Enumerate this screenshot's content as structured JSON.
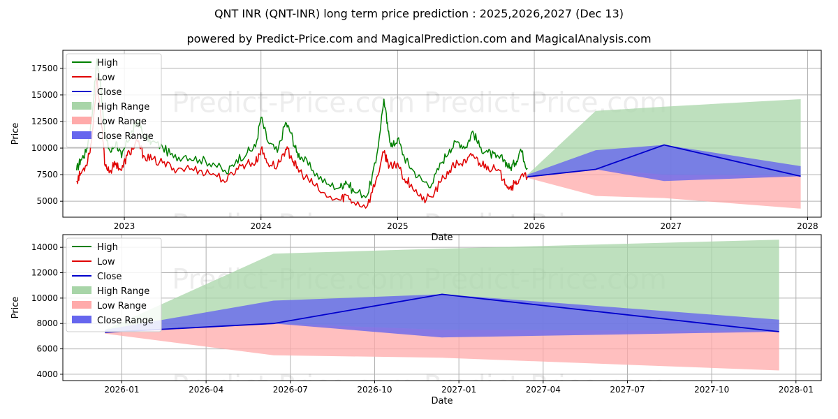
{
  "title": "QNT INR (QNT-INR) long term price prediction : 2025,2026,2027 (Dec 13)",
  "subtitle": "powered by Predict-Price.com and MagicalPrediction.com and MagicalAnalysis.com",
  "watermark": "Predict-Price.com",
  "legend": [
    "High",
    "Low",
    "Close",
    "High Range",
    "Low Range",
    "Close Range"
  ],
  "colors": {
    "high": "#008000",
    "low": "#e00000",
    "close": "#0000cc",
    "high_range": "#a8d5a8",
    "low_range": "#ffaaaa",
    "close_range": "#6666ee"
  },
  "chart_data": [
    {
      "type": "line",
      "xlabel": "Date",
      "ylabel": "Price",
      "xlim": [
        2022.55,
        2028.1
      ],
      "ylim": [
        3500,
        19200
      ],
      "xticks": [
        2023,
        2024,
        2025,
        2026,
        2027,
        2028
      ],
      "xtick_labels": [
        "2023",
        "2024",
        "2025",
        "2026",
        "2027",
        "2028"
      ],
      "yticks": [
        5000,
        7500,
        10000,
        12500,
        15000,
        17500
      ],
      "ytick_labels": [
        "5000",
        "7500",
        "10000",
        "12500",
        "15000",
        "17500"
      ],
      "history": {
        "x": [
          2022.65,
          2022.68,
          2022.72,
          2022.76,
          2022.8,
          2022.83,
          2022.86,
          2022.9,
          2022.94,
          2022.98,
          2023.02,
          2023.06,
          2023.1,
          2023.14,
          2023.2,
          2023.28,
          2023.36,
          2023.45,
          2023.55,
          2023.65,
          2023.75,
          2023.82,
          2023.9,
          2023.96,
          2024.0,
          2024.05,
          2024.12,
          2024.18,
          2024.22,
          2024.26,
          2024.3,
          2024.38,
          2024.48,
          2024.58,
          2024.62,
          2024.68,
          2024.78,
          2024.84,
          2024.9,
          2024.93,
          2024.96,
          2025.0,
          2025.05,
          2025.1,
          2025.18,
          2025.25,
          2025.32,
          2025.38,
          2025.44,
          2025.5,
          2025.55,
          2025.6,
          2025.66,
          2025.72,
          2025.78,
          2025.82,
          2025.86,
          2025.9,
          2025.95
        ],
        "high": [
          7900,
          8900,
          9600,
          12600,
          18400,
          15500,
          11000,
          9600,
          10600,
          9100,
          10600,
          11600,
          12600,
          11200,
          10600,
          10100,
          9100,
          9300,
          8900,
          8600,
          7600,
          8900,
          9600,
          10100,
          12900,
          10600,
          9600,
          12400,
          11400,
          9600,
          9100,
          7900,
          6600,
          6300,
          6900,
          5900,
          5600,
          8600,
          14600,
          11600,
          10100,
          10900,
          9100,
          8100,
          6900,
          6600,
          8600,
          9900,
          10600,
          10100,
          11600,
          10100,
          9600,
          9100,
          8900,
          8100,
          8600,
          9900,
          8100
        ],
        "low": [
          6900,
          7600,
          8400,
          10600,
          16600,
          12600,
          8300,
          7900,
          8600,
          7900,
          9300,
          9900,
          10600,
          9300,
          8900,
          8600,
          8100,
          8100,
          7900,
          7600,
          6900,
          8100,
          8600,
          8600,
          9900,
          8600,
          8300,
          9900,
          9300,
          8100,
          7600,
          6600,
          5400,
          5100,
          5600,
          4900,
          4600,
          6900,
          9600,
          8600,
          8100,
          8600,
          7100,
          6600,
          5100,
          5400,
          6900,
          7900,
          8600,
          8600,
          9400,
          8600,
          8300,
          7900,
          7100,
          6300,
          6600,
          7300,
          7300
        ]
      },
      "close": {
        "x": [
          2025.95,
          2026.45,
          2026.95,
          2027.95
        ],
        "y": [
          7300,
          8000,
          10300,
          7350
        ]
      },
      "high_range": {
        "x": [
          2025.95,
          2026.45,
          2026.95,
          2027.95
        ],
        "upper": [
          7500,
          13500,
          13900,
          14600
        ],
        "lower": [
          7300,
          8000,
          7500,
          7400
        ]
      },
      "low_range": {
        "x": [
          2025.95,
          2026.45,
          2026.95,
          2027.95
        ],
        "upper": [
          7300,
          8000,
          7500,
          7400
        ],
        "lower": [
          7200,
          5500,
          5300,
          4300
        ]
      },
      "close_range": {
        "x": [
          2025.95,
          2026.45,
          2026.95,
          2027.95
        ],
        "upper": [
          7500,
          9800,
          10300,
          8300
        ],
        "lower": [
          7300,
          8000,
          6900,
          7350
        ]
      }
    },
    {
      "type": "line",
      "xlabel": "Date",
      "ylabel": "Price",
      "xlim": [
        2025.825,
        2028.075
      ],
      "ylim": [
        3500,
        15000
      ],
      "xticks": [
        2026.0,
        2026.25,
        2026.5,
        2026.75,
        2027.0,
        2027.25,
        2027.5,
        2027.75,
        2028.0
      ],
      "xtick_labels": [
        "2026-01",
        "2026-04",
        "2026-07",
        "2026-10",
        "2027-01",
        "2027-04",
        "2027-07",
        "2027-10",
        "2028-01"
      ],
      "yticks": [
        4000,
        6000,
        8000,
        10000,
        12000,
        14000
      ],
      "ytick_labels": [
        "4000",
        "6000",
        "8000",
        "10000",
        "12000",
        "14000"
      ],
      "close": {
        "x": [
          2025.95,
          2026.45,
          2026.95,
          2027.95
        ],
        "y": [
          7300,
          8000,
          10300,
          7350
        ]
      },
      "high_range": {
        "x": [
          2025.95,
          2026.45,
          2026.95,
          2027.95
        ],
        "upper": [
          7500,
          13500,
          13900,
          14600
        ],
        "lower": [
          7300,
          8000,
          7500,
          7400
        ]
      },
      "low_range": {
        "x": [
          2025.95,
          2026.45,
          2026.95,
          2027.95
        ],
        "upper": [
          7300,
          8000,
          7500,
          7400
        ],
        "lower": [
          7200,
          5500,
          5300,
          4300
        ]
      },
      "close_range": {
        "x": [
          2025.95,
          2026.45,
          2026.95,
          2027.95
        ],
        "upper": [
          7500,
          9800,
          10300,
          8300
        ],
        "lower": [
          7300,
          8000,
          6900,
          7350
        ]
      }
    }
  ]
}
